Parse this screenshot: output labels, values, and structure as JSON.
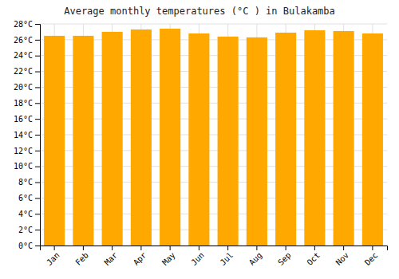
{
  "chart_data": {
    "type": "bar",
    "title": "Average monthly temperatures (°C ) in Bulakamba",
    "categories": [
      "Jan",
      "Feb",
      "Mar",
      "Apr",
      "May",
      "Jun",
      "Jul",
      "Aug",
      "Sep",
      "Oct",
      "Nov",
      "Dec"
    ],
    "values": [
      26.5,
      26.5,
      27.0,
      27.3,
      27.4,
      26.8,
      26.4,
      26.3,
      26.9,
      27.2,
      27.1,
      26.8
    ],
    "color": "#FFA800",
    "ylim": [
      0,
      28
    ],
    "yticks": [
      {
        "value": 0,
        "label": "0°C"
      },
      {
        "value": 2,
        "label": "2°C"
      },
      {
        "value": 4,
        "label": "4°C"
      },
      {
        "value": 6,
        "label": "6°C"
      },
      {
        "value": 8,
        "label": "8°C"
      },
      {
        "value": 10,
        "label": "10°C"
      },
      {
        "value": 12,
        "label": "12°C"
      },
      {
        "value": 14,
        "label": "14°C"
      },
      {
        "value": 16,
        "label": "16°C"
      },
      {
        "value": 18,
        "label": "18°C"
      },
      {
        "value": 20,
        "label": "20°C"
      },
      {
        "value": 22,
        "label": "22°C"
      },
      {
        "value": 24,
        "label": "24°C"
      },
      {
        "value": 26,
        "label": "26°C"
      },
      {
        "value": 28,
        "label": "28°C"
      }
    ],
    "grid": true
  }
}
